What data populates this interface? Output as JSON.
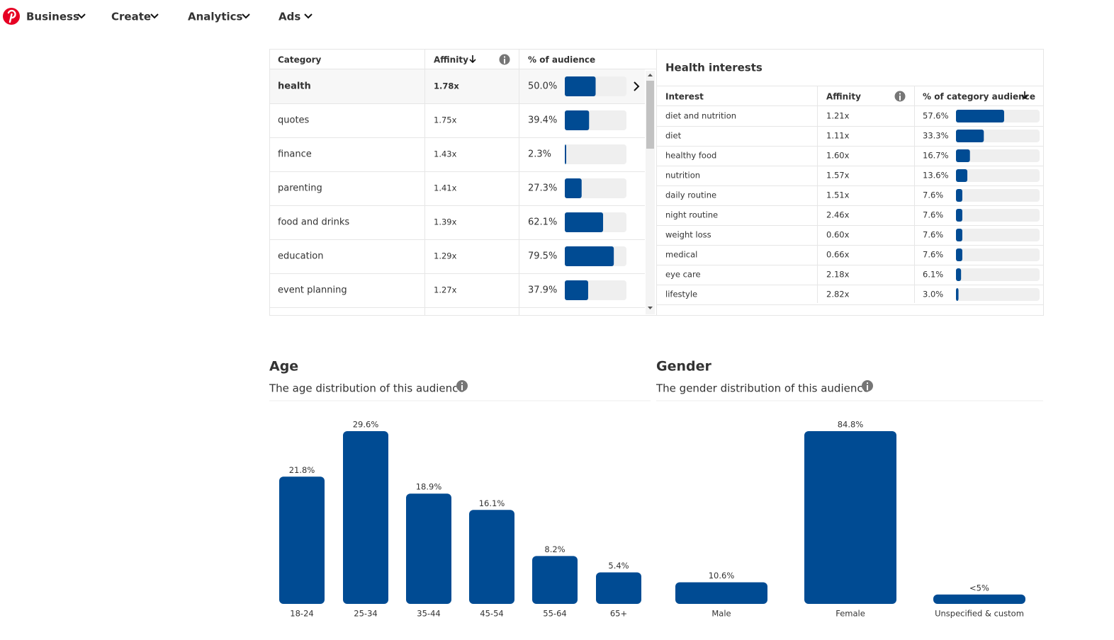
{
  "nav": {
    "items": [
      "Business",
      "Create",
      "Analytics",
      "Ads"
    ]
  },
  "category_table": {
    "columns": [
      "Category",
      "Affinity",
      "% of audience"
    ],
    "rows": [
      {
        "category": "health",
        "affinity": "1.78x",
        "percent": 50.0,
        "percent_label": "50.0%"
      },
      {
        "category": "quotes",
        "affinity": "1.75x",
        "percent": 39.4,
        "percent_label": "39.4%"
      },
      {
        "category": "finance",
        "affinity": "1.43x",
        "percent": 2.3,
        "percent_label": "2.3%"
      },
      {
        "category": "parenting",
        "affinity": "1.41x",
        "percent": 27.3,
        "percent_label": "27.3%"
      },
      {
        "category": "food and drinks",
        "affinity": "1.39x",
        "percent": 62.1,
        "percent_label": "62.1%"
      },
      {
        "category": "education",
        "affinity": "1.29x",
        "percent": 79.5,
        "percent_label": "79.5%"
      },
      {
        "category": "event planning",
        "affinity": "1.27x",
        "percent": 37.9,
        "percent_label": "37.9%"
      }
    ]
  },
  "interest_table": {
    "title": "Health interests",
    "columns": [
      "Interest",
      "Affinity",
      "% of category audience"
    ],
    "rows": [
      {
        "interest": "diet and nutrition",
        "affinity": "1.21x",
        "percent": 57.6,
        "percent_label": "57.6%"
      },
      {
        "interest": "diet",
        "affinity": "1.11x",
        "percent": 33.3,
        "percent_label": "33.3%"
      },
      {
        "interest": "healthy food",
        "affinity": "1.60x",
        "percent": 16.7,
        "percent_label": "16.7%"
      },
      {
        "interest": "nutrition",
        "affinity": "1.57x",
        "percent": 13.6,
        "percent_label": "13.6%"
      },
      {
        "interest": "daily routine",
        "affinity": "1.51x",
        "percent": 7.6,
        "percent_label": "7.6%"
      },
      {
        "interest": "night routine",
        "affinity": "2.46x",
        "percent": 7.6,
        "percent_label": "7.6%"
      },
      {
        "interest": "weight loss",
        "affinity": "0.60x",
        "percent": 7.6,
        "percent_label": "7.6%"
      },
      {
        "interest": "medical",
        "affinity": "0.66x",
        "percent": 7.6,
        "percent_label": "7.6%"
      },
      {
        "interest": "eye care",
        "affinity": "2.18x",
        "percent": 6.1,
        "percent_label": "6.1%"
      },
      {
        "interest": "lifestyle",
        "affinity": "2.82x",
        "percent": 3.0,
        "percent_label": "3.0%"
      }
    ]
  },
  "age_chart": {
    "type": "bar",
    "title": "Age",
    "subtitle": "The age distribution of this audience",
    "categories": [
      "18-24",
      "25-34",
      "35-44",
      "45-54",
      "55-64",
      "65+"
    ],
    "values": [
      21.8,
      29.6,
      18.9,
      16.1,
      8.2,
      5.4
    ],
    "value_labels": [
      "21.8%",
      "29.6%",
      "18.9%",
      "16.1%",
      "8.2%",
      "5.4%"
    ],
    "color": "#004b93"
  },
  "gender_chart": {
    "type": "bar",
    "title": "Gender",
    "subtitle": "The gender distribution of this audience",
    "categories": [
      "Male",
      "Female",
      "Unspecified & custom"
    ],
    "values": [
      10.6,
      84.8,
      4.6
    ],
    "value_labels": [
      "10.6%",
      "84.8%",
      "<5%"
    ],
    "color": "#004b93"
  }
}
